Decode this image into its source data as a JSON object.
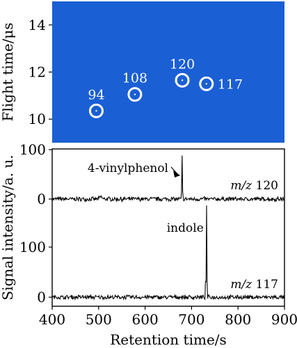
{
  "chart_data": [
    {
      "type": "scatter",
      "panel": "heatmap",
      "background_color": "#1a5fd4",
      "marker_color": "#ffffff",
      "xlim": [
        400,
        900
      ],
      "ylim": [
        9,
        15
      ],
      "ylabel": "Flight time/μs",
      "yticks": [
        10,
        12,
        14
      ],
      "points": [
        {
          "x": 495,
          "y": 10.35,
          "label": "94"
        },
        {
          "x": 578,
          "y": 11.05,
          "label": "108"
        },
        {
          "x": 680,
          "y": 11.65,
          "label": "120"
        },
        {
          "x": 732,
          "y": 11.5,
          "label": "117"
        }
      ]
    },
    {
      "type": "line",
      "panel": "signal",
      "xlim": [
        400,
        900
      ],
      "xticks": [
        400,
        500,
        600,
        700,
        800,
        900
      ],
      "xlabel": "Retention time/s",
      "ylabel": "Signal intensity/a. u.",
      "series": [
        {
          "name": "m/z 120",
          "mz_prefix": "m/z",
          "mz_value": "120",
          "ylim": [
            -5,
            100
          ],
          "yticks": [
            0,
            100
          ],
          "peak_x": 680,
          "peak_y": 88,
          "annotation": "4-vinylphenol",
          "noise_amplitude": 3
        },
        {
          "name": "m/z 117",
          "mz_prefix": "m/z",
          "mz_value": "117",
          "ylim": [
            -5,
            190
          ],
          "yticks": [
            0,
            100
          ],
          "peak_x": 732,
          "peak_y": 183,
          "annotation": "indole",
          "noise_amplitude": 3
        }
      ]
    }
  ]
}
